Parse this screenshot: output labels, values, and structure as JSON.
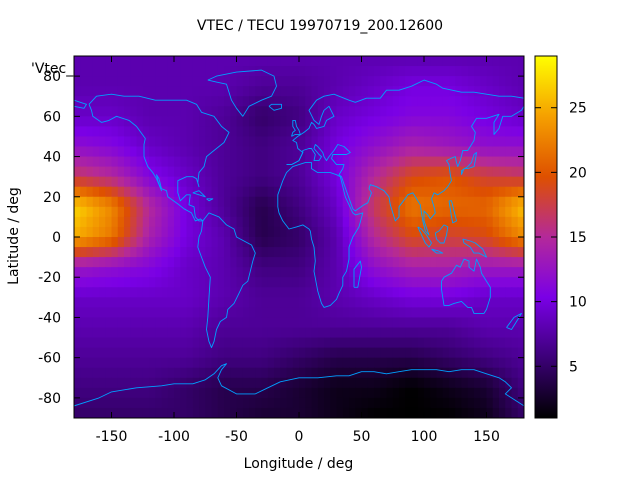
{
  "chart_data": {
    "type": "heatmap",
    "title": "VTEC / TECU 19970719_200.12600",
    "xlabel": "Longitude / deg",
    "ylabel": "Latitude / deg",
    "legend_label": "'Vtec_",
    "xlim": [
      -180,
      180
    ],
    "ylim": [
      -90,
      90
    ],
    "x_ticks": [
      -150,
      -100,
      -50,
      0,
      50,
      100,
      150
    ],
    "y_ticks": [
      -80,
      -60,
      -40,
      -20,
      0,
      20,
      40,
      60,
      80
    ],
    "colorbar": {
      "range": [
        1,
        29
      ],
      "ticks": [
        5,
        10,
        15,
        20,
        25
      ],
      "palette": [
        "#000000",
        "#3c0078",
        "#7a00e6",
        "#b4299a",
        "#de5000",
        "#f5a000",
        "#ffff00"
      ]
    },
    "overlay": "coastlines",
    "overlay_color": "#00a0ff",
    "lon": [
      -180,
      -150,
      -120,
      -90,
      -60,
      -30,
      0,
      30,
      60,
      90,
      120,
      150,
      180
    ],
    "lat": [
      90,
      75,
      60,
      45,
      30,
      15,
      0,
      -15,
      -30,
      -45,
      -60,
      -75,
      -90
    ],
    "values": [
      [
        8,
        8,
        8,
        8,
        8,
        8,
        8,
        8,
        8,
        8,
        8,
        8,
        8
      ],
      [
        8,
        8,
        8,
        8,
        8,
        7,
        7,
        8,
        9,
        10,
        10,
        9,
        8
      ],
      [
        9,
        9,
        8,
        8,
        7,
        5,
        6,
        9,
        10,
        11,
        11,
        10,
        9
      ],
      [
        12,
        11,
        9,
        8,
        7,
        6,
        7,
        10,
        12,
        14,
        13,
        12,
        12
      ],
      [
        17,
        15,
        11,
        9,
        7,
        6,
        7,
        10,
        15,
        19,
        20,
        18,
        17
      ],
      [
        27,
        23,
        15,
        10,
        7,
        4,
        6,
        9,
        17,
        22,
        21,
        21,
        26
      ],
      [
        25,
        22,
        14,
        10,
        8,
        4,
        5,
        8,
        15,
        19,
        18,
        19,
        23
      ],
      [
        13,
        12,
        11,
        9,
        8,
        6,
        6,
        8,
        12,
        14,
        14,
        13,
        13
      ],
      [
        9,
        9,
        9,
        9,
        8,
        7,
        7,
        8,
        9,
        10,
        10,
        9,
        9
      ],
      [
        8,
        8,
        8,
        8,
        7,
        7,
        7,
        7,
        7,
        7,
        7,
        8,
        8
      ],
      [
        7,
        7,
        7,
        7,
        6,
        6,
        5,
        4,
        4,
        4,
        5,
        6,
        7
      ],
      [
        6,
        6,
        6,
        5,
        4,
        4,
        3,
        2,
        2,
        1,
        2,
        3,
        6
      ],
      [
        5,
        5,
        5,
        5,
        4,
        3,
        3,
        2,
        1,
        1,
        1,
        2,
        5
      ]
    ]
  }
}
